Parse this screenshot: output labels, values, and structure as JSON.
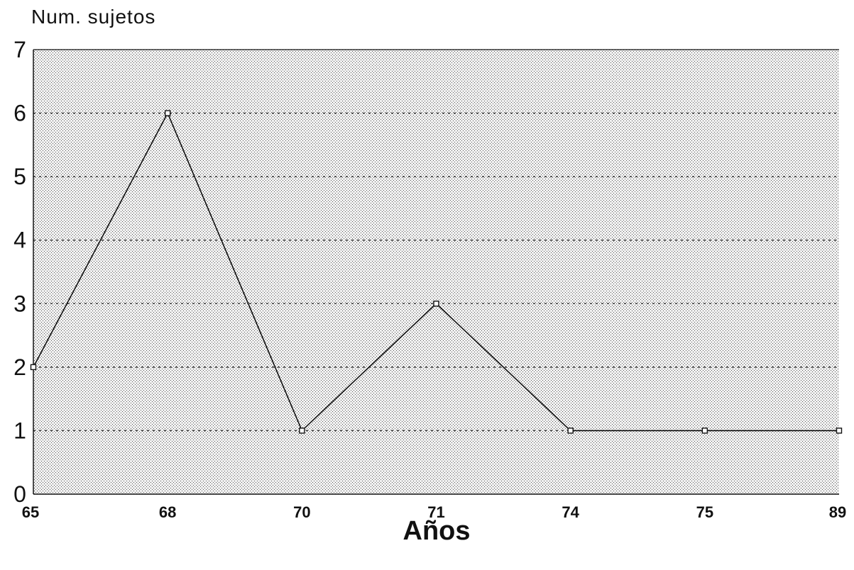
{
  "chart_data": {
    "type": "line",
    "title": "",
    "xlabel": "Años",
    "ylabel": "Num. sujetos",
    "categories": [
      "65",
      "68",
      "70",
      "71",
      "74",
      "75",
      "89"
    ],
    "series": [
      {
        "values": [
          2,
          6,
          1,
          3,
          1,
          1,
          1
        ]
      }
    ],
    "ylim": [
      0,
      7
    ],
    "yticks": [
      "0",
      "1",
      "2",
      "3",
      "4",
      "5",
      "6",
      "7"
    ],
    "grid": true,
    "legend": "none"
  },
  "colors": {
    "background": "#ffffff",
    "plot_fill": "#e6e6e6",
    "line": "#111111",
    "grid": "#333333"
  }
}
